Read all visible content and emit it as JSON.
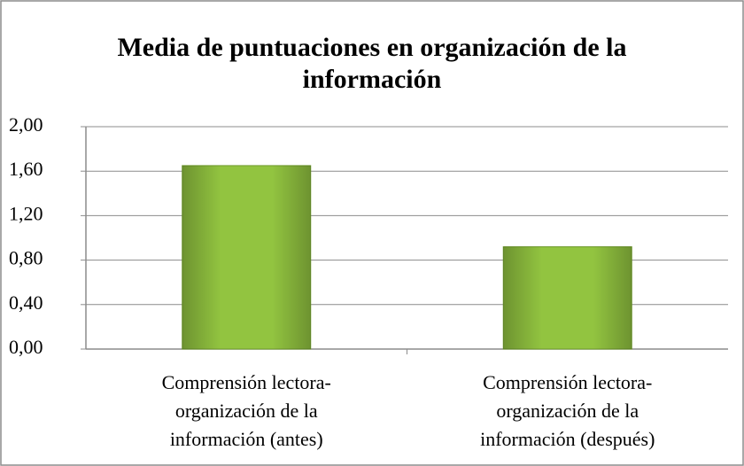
{
  "chart_data": {
    "type": "bar",
    "title": "Media de puntuaciones en organización de la información",
    "categories": [
      "Comprensión lectora-organización de la información (antes)",
      "Comprensión lectora-organización de la información (después)"
    ],
    "values": [
      1.65,
      0.92
    ],
    "color": "#92c440",
    "ylim": [
      0,
      2
    ],
    "yticks": [
      {
        "value": 0,
        "label": "0,00"
      },
      {
        "value": 0.4,
        "label": "0,40"
      },
      {
        "value": 0.8,
        "label": "0,80"
      },
      {
        "value": 1.2,
        "label": "1,20"
      },
      {
        "value": 1.6,
        "label": "1,60"
      },
      {
        "value": 2,
        "label": "2,00"
      }
    ],
    "grid": true
  }
}
